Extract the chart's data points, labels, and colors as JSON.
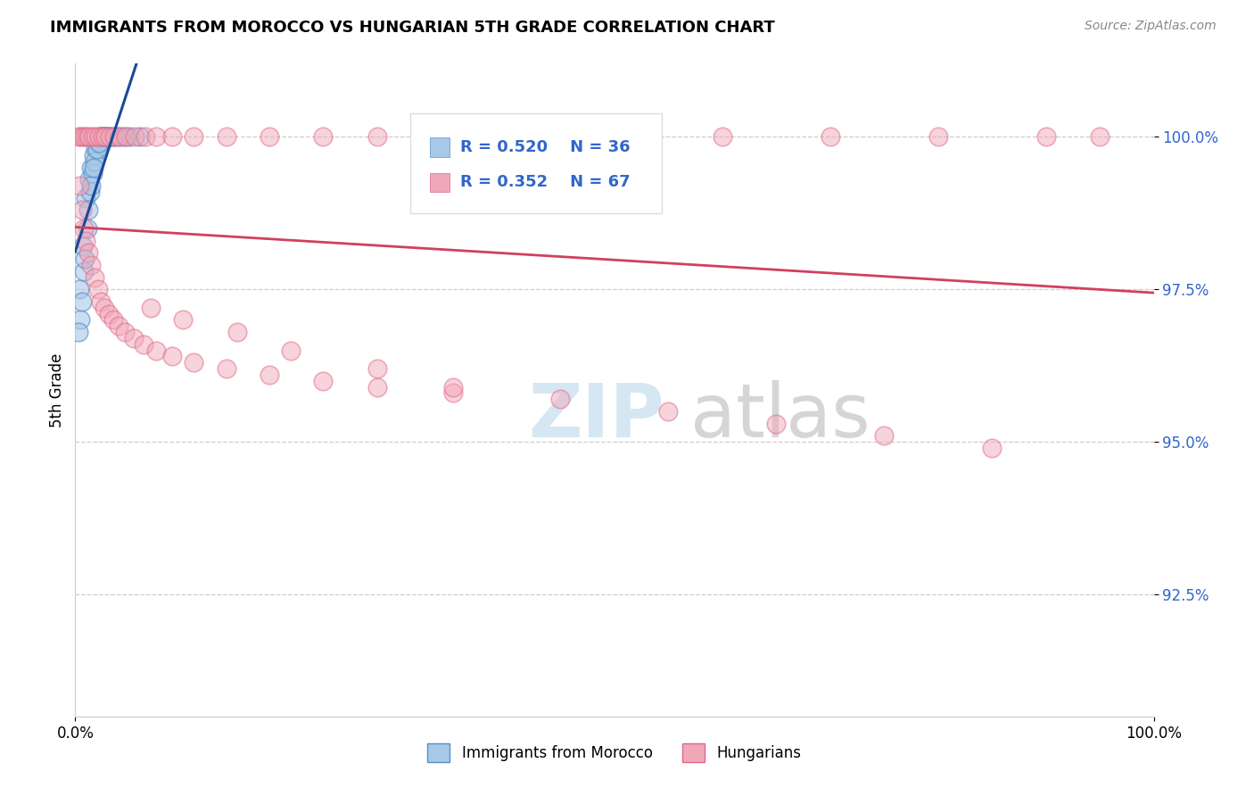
{
  "title": "IMMIGRANTS FROM MOROCCO VS HUNGARIAN 5TH GRADE CORRELATION CHART",
  "source": "Source: ZipAtlas.com",
  "ylabel": "5th Grade",
  "xlim": [
    0.0,
    100.0
  ],
  "ylim": [
    90.5,
    101.2
  ],
  "yticks": [
    92.5,
    95.0,
    97.5,
    100.0
  ],
  "ytick_labels": [
    "92.5%",
    "95.0%",
    "97.5%",
    "100.0%"
  ],
  "legend_R_blue": "R = 0.520",
  "legend_N_blue": "N = 36",
  "legend_R_pink": "R = 0.352",
  "legend_N_pink": "N = 67",
  "legend_label_blue": "Immigrants from Morocco",
  "legend_label_pink": "Hungarians",
  "blue_color": "#a8c8e8",
  "pink_color": "#f0a8b8",
  "blue_edge_color": "#5590c8",
  "pink_edge_color": "#e06888",
  "blue_line_color": "#1a4a9a",
  "pink_line_color": "#d04060",
  "watermark_zip": "ZIP",
  "watermark_atlas": "atlas",
  "blue_x": [
    0.4,
    0.7,
    1.0,
    1.3,
    1.5,
    1.7,
    1.9,
    2.1,
    2.3,
    2.5,
    2.7,
    3.0,
    3.3,
    3.6,
    4.0,
    4.5,
    5.0,
    6.0,
    0.5,
    0.8,
    1.1,
    1.4,
    1.6,
    1.8,
    2.0,
    2.2,
    2.4,
    2.6,
    2.8,
    3.1,
    0.3,
    0.6,
    0.9,
    1.2,
    1.5,
    1.7
  ],
  "blue_y": [
    97.5,
    98.2,
    99.0,
    99.3,
    99.5,
    99.7,
    99.8,
    99.9,
    100.0,
    100.0,
    100.0,
    100.0,
    100.0,
    100.0,
    100.0,
    100.0,
    100.0,
    100.0,
    97.0,
    97.8,
    98.5,
    99.1,
    99.4,
    99.6,
    99.8,
    99.9,
    100.0,
    100.0,
    100.0,
    100.0,
    96.8,
    97.3,
    98.0,
    98.8,
    99.2,
    99.5
  ],
  "pink_x": [
    0.3,
    0.5,
    0.7,
    0.9,
    1.1,
    1.3,
    1.6,
    1.9,
    2.2,
    2.5,
    2.8,
    3.2,
    3.6,
    4.1,
    4.7,
    5.5,
    6.5,
    7.5,
    9.0,
    11.0,
    14.0,
    18.0,
    23.0,
    28.0,
    35.0,
    42.0,
    50.0,
    60.0,
    70.0,
    80.0,
    90.0,
    95.0,
    0.4,
    0.6,
    0.8,
    1.0,
    1.2,
    1.5,
    1.8,
    2.1,
    2.4,
    2.7,
    3.1,
    3.5,
    4.0,
    4.6,
    5.4,
    6.3,
    7.5,
    9.0,
    11.0,
    14.0,
    18.0,
    23.0,
    28.0,
    35.0,
    7.0,
    10.0,
    15.0,
    20.0,
    28.0,
    35.0,
    45.0,
    55.0,
    65.0,
    75.0,
    85.0
  ],
  "pink_y": [
    100.0,
    100.0,
    100.0,
    100.0,
    100.0,
    100.0,
    100.0,
    100.0,
    100.0,
    100.0,
    100.0,
    100.0,
    100.0,
    100.0,
    100.0,
    100.0,
    100.0,
    100.0,
    100.0,
    100.0,
    100.0,
    100.0,
    100.0,
    100.0,
    100.0,
    100.0,
    100.0,
    100.0,
    100.0,
    100.0,
    100.0,
    100.0,
    99.2,
    98.8,
    98.5,
    98.3,
    98.1,
    97.9,
    97.7,
    97.5,
    97.3,
    97.2,
    97.1,
    97.0,
    96.9,
    96.8,
    96.7,
    96.6,
    96.5,
    96.4,
    96.3,
    96.2,
    96.1,
    96.0,
    95.9,
    95.8,
    97.2,
    97.0,
    96.8,
    96.5,
    96.2,
    95.9,
    95.7,
    95.5,
    95.3,
    95.1,
    94.9
  ]
}
